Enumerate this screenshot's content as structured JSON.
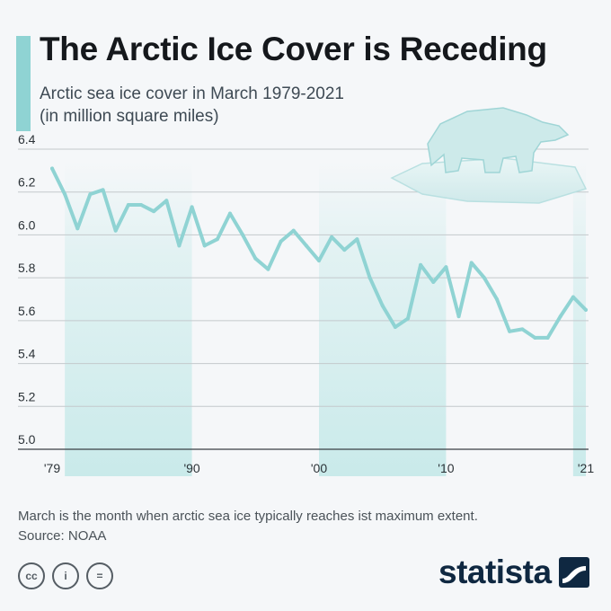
{
  "header": {
    "title": "The Arctic Ice Cover is Receding",
    "subtitle_line1": "Arctic sea ice cover in March 1979-2021",
    "subtitle_line2": "(in million square miles)"
  },
  "footer": {
    "note": "March is the month when arctic sea ice typically reaches ist maximum extent.",
    "source": "Source: NOAA",
    "cc_labels": [
      "cc",
      "i",
      "="
    ],
    "brand": "statista"
  },
  "colors": {
    "line": "#8fd3d3",
    "band": "#d4eeee",
    "accent": "#8fd3d3",
    "brand": "#0f2841"
  },
  "chart_data": {
    "type": "line",
    "title": "The Arctic Ice Cover is Receding",
    "subtitle": "Arctic sea ice cover in March 1979-2021 (in million square miles)",
    "unit": "million square miles",
    "x": [
      1979,
      1980,
      1981,
      1982,
      1983,
      1984,
      1985,
      1986,
      1987,
      1988,
      1989,
      1990,
      1991,
      1992,
      1993,
      1994,
      1995,
      1996,
      1997,
      1998,
      1999,
      2000,
      2001,
      2002,
      2003,
      2004,
      2005,
      2006,
      2007,
      2008,
      2009,
      2010,
      2011,
      2012,
      2013,
      2014,
      2015,
      2016,
      2017,
      2018,
      2019,
      2020,
      2021
    ],
    "series": [
      {
        "values": [
          6.31,
          6.19,
          6.03,
          6.19,
          6.21,
          6.02,
          6.14,
          6.14,
          6.11,
          6.16,
          5.95,
          6.13,
          5.95,
          5.98,
          6.1,
          6.0,
          5.89,
          5.84,
          5.97,
          6.02,
          5.95,
          5.88,
          5.99,
          5.93,
          5.98,
          5.8,
          5.67,
          5.57,
          5.61,
          5.86,
          5.78,
          5.85,
          5.62,
          5.87,
          5.8,
          5.7,
          5.55,
          5.56,
          5.52,
          5.52,
          5.62,
          5.71,
          5.65
        ]
      }
    ],
    "ylim": [
      5.0,
      6.4
    ],
    "yticks": [
      5.0,
      5.2,
      5.4,
      5.6,
      5.8,
      6.0,
      6.2,
      6.4
    ],
    "ytick_labels": [
      "5.0",
      "5.2",
      "5.4",
      "5.6",
      "5.8",
      "6.0",
      "6.2",
      "6.4"
    ],
    "xticks": [
      1979,
      1990,
      2000,
      2010,
      2021
    ],
    "xtick_labels": [
      "'79",
      "'90",
      "'00",
      "'10",
      "'21"
    ],
    "decade_bands": [
      [
        1980,
        1990
      ],
      [
        2000,
        2010
      ],
      [
        2020,
        2021
      ]
    ],
    "grid": true
  }
}
